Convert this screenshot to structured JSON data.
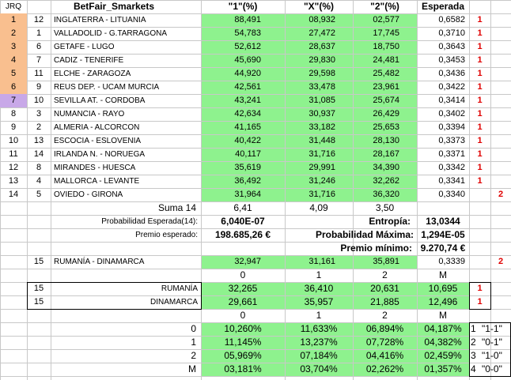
{
  "header": {
    "jrq": "JRQ",
    "title": "BetFair_Smarkets",
    "c1": "\"1\"(%)",
    "cx": "\"X\"(%)",
    "c2": "\"2\"(%)",
    "esperada": "Esperada"
  },
  "matches": [
    {
      "num": "1",
      "code": "12",
      "teams": "INGLATERRA - LITUANIA",
      "p1": "88,491",
      "px": "08,932",
      "p2": "02,577",
      "esp": "0,6582",
      "res": "1"
    },
    {
      "num": "2",
      "code": "1",
      "teams": "VALLADOLID - G.TARRAGONA",
      "p1": "54,783",
      "px": "27,472",
      "p2": "17,745",
      "esp": "0,3710",
      "res": "1"
    },
    {
      "num": "3",
      "code": "6",
      "teams": "GETAFE - LUGO",
      "p1": "52,612",
      "px": "28,637",
      "p2": "18,750",
      "esp": "0,3643",
      "res": "1"
    },
    {
      "num": "4",
      "code": "7",
      "teams": "CADIZ - TENERIFE",
      "p1": "45,690",
      "px": "29,830",
      "p2": "24,481",
      "esp": "0,3453",
      "res": "1"
    },
    {
      "num": "5",
      "code": "11",
      "teams": "ELCHE - ZARAGOZA",
      "p1": "44,920",
      "px": "29,598",
      "p2": "25,482",
      "esp": "0,3436",
      "res": "1"
    },
    {
      "num": "6",
      "code": "9",
      "teams": "REUS DEP. - UCAM MURCIA",
      "p1": "42,561",
      "px": "33,478",
      "p2": "23,961",
      "esp": "0,3422",
      "res": "1"
    },
    {
      "num": "7",
      "code": "10",
      "teams": "SEVILLA AT. - CORDOBA",
      "p1": "43,241",
      "px": "31,085",
      "p2": "25,674",
      "esp": "0,3414",
      "res": "1"
    },
    {
      "num": "8",
      "code": "3",
      "teams": "NUMANCIA - RAYO",
      "p1": "42,634",
      "px": "30,937",
      "p2": "26,429",
      "esp": "0,3402",
      "res": "1"
    },
    {
      "num": "9",
      "code": "2",
      "teams": "ALMERIA - ALCORCON",
      "p1": "41,165",
      "px": "33,182",
      "p2": "25,653",
      "esp": "0,3394",
      "res": "1"
    },
    {
      "num": "10",
      "code": "13",
      "teams": "ESCOCIA - ESLOVENIA",
      "p1": "40,422",
      "px": "31,448",
      "p2": "28,130",
      "esp": "0,3373",
      "res": "1"
    },
    {
      "num": "11",
      "code": "14",
      "teams": "IRLANDA N. - NORUEGA",
      "p1": "40,117",
      "px": "31,716",
      "p2": "28,167",
      "esp": "0,3371",
      "res": "1"
    },
    {
      "num": "12",
      "code": "8",
      "teams": "MIRANDES - HUESCA",
      "p1": "35,619",
      "px": "29,991",
      "p2": "34,390",
      "esp": "0,3342",
      "res": "1"
    },
    {
      "num": "13",
      "code": "4",
      "teams": "MALLORCA - LEVANTE",
      "p1": "36,492",
      "px": "31,246",
      "p2": "32,262",
      "esp": "0,3341",
      "res": "1"
    },
    {
      "num": "14",
      "code": "5",
      "teams": "OVIEDO - GIRONA",
      "p1": "31,964",
      "px": "31,716",
      "p2": "36,320",
      "esp": "0,3340",
      "res": "2"
    }
  ],
  "summary": {
    "suma_label": "Suma 14",
    "suma1": "6,41",
    "sumax": "4,09",
    "suma2": "3,50",
    "prob_label": "Probabilidad Esperada(14):",
    "prob_value": "6,040E-07",
    "entropia_label": "Entropía:",
    "entropia_value": "13,0344",
    "premio_label": "Premio esperado:",
    "premio_value": "198.685,26 €",
    "probmax_label": "Probabilidad Máxima:",
    "probmax_value": "1,294E-05",
    "premiomin_label": "Premio mínimo:",
    "premiomin_value": "9.270,74 €"
  },
  "pleno": {
    "num": "15",
    "teams": "RUMANÍA - DINAMARCA",
    "p1": "32,947",
    "px": "31,161",
    "p2": "35,891",
    "esp": "0,3339",
    "res": "2"
  },
  "goals_header": [
    "0",
    "1",
    "2",
    "M"
  ],
  "goals": [
    {
      "num": "15",
      "team": "RUMANÍA",
      "g0": "32,265",
      "g1": "36,410",
      "g2": "20,631",
      "gm": "10,695",
      "res": "1"
    },
    {
      "num": "15",
      "team": "DINAMARCA",
      "g0": "29,661",
      "g1": "35,957",
      "g2": "21,885",
      "gm": "12,496",
      "res": "1"
    }
  ],
  "matrix_header": [
    "0",
    "1",
    "2",
    "M"
  ],
  "matrix": [
    {
      "label": "0",
      "v": [
        "10,260%",
        "11,633%",
        "06,894%",
        "04,187%"
      ],
      "rank": "1",
      "score": "\"1-1\""
    },
    {
      "label": "1",
      "v": [
        "11,145%",
        "13,237%",
        "07,728%",
        "04,382%"
      ],
      "rank": "2",
      "score": "\"0-1\""
    },
    {
      "label": "2",
      "v": [
        "05,969%",
        "07,184%",
        "04,416%",
        "02,459%"
      ],
      "rank": "3",
      "score": "\"1-0\""
    },
    {
      "label": "M",
      "v": [
        "03,181%",
        "03,704%",
        "02,262%",
        "01,357%"
      ],
      "rank": "4",
      "score": "\"0-0\""
    }
  ],
  "colors": {
    "green": "#8ef28e",
    "orange": "#f9bf8f",
    "purple": "#c8a8e8",
    "red": "#e00000"
  }
}
